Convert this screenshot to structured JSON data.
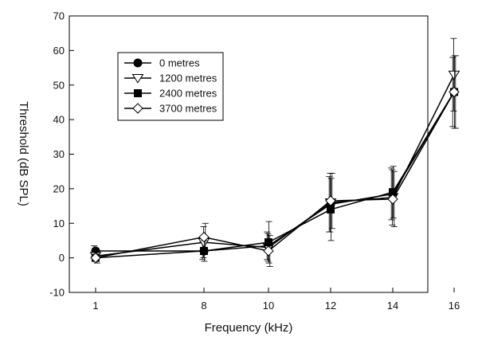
{
  "chart_data": {
    "type": "line",
    "title": "",
    "xlabel": "Frequency (kHz)",
    "ylabel": "Threshold (dB SPL)",
    "x": [
      1,
      8,
      10,
      12,
      14,
      16
    ],
    "x_tick_labels": [
      "1",
      "8",
      "10",
      "12",
      "14",
      "16"
    ],
    "x_scale": "categorical-spaced (1 kHz at first slot; 8–16 kHz evenly spaced)",
    "ylim": [
      -10,
      70
    ],
    "y_ticks": [
      -10,
      0,
      10,
      20,
      30,
      40,
      50,
      60,
      70
    ],
    "y_tick_labels": [
      "-10",
      "0",
      "10",
      "20",
      "30",
      "40",
      "50",
      "60",
      "70"
    ],
    "grid": false,
    "legend_position": "top-left",
    "series": [
      {
        "name": "0 metres",
        "marker": "filled-circle",
        "values": [
          2.0,
          2.0,
          3.5,
          15.5,
          18.5,
          48.0
        ],
        "error": [
          1.5,
          2.5,
          4.0,
          8.0,
          7.5,
          10.0
        ]
      },
      {
        "name": "1200 metres",
        "marker": "open-triangle-down",
        "values": [
          0.5,
          4.5,
          3.0,
          16.0,
          17.5,
          53.0
        ],
        "error": [
          1.5,
          4.5,
          4.0,
          8.5,
          8.0,
          10.5
        ]
      },
      {
        "name": "2400 metres",
        "marker": "filled-square",
        "values": [
          0.0,
          2.0,
          4.5,
          14.0,
          19.0,
          48.0
        ],
        "error": [
          1.0,
          3.0,
          6.0,
          9.0,
          7.5,
          10.5
        ]
      },
      {
        "name": "3700 metres",
        "marker": "open-diamond",
        "values": [
          0.0,
          6.0,
          2.0,
          16.5,
          17.0,
          48.0
        ],
        "error": [
          1.5,
          4.0,
          4.5,
          8.0,
          8.0,
          10.5
        ]
      }
    ]
  }
}
